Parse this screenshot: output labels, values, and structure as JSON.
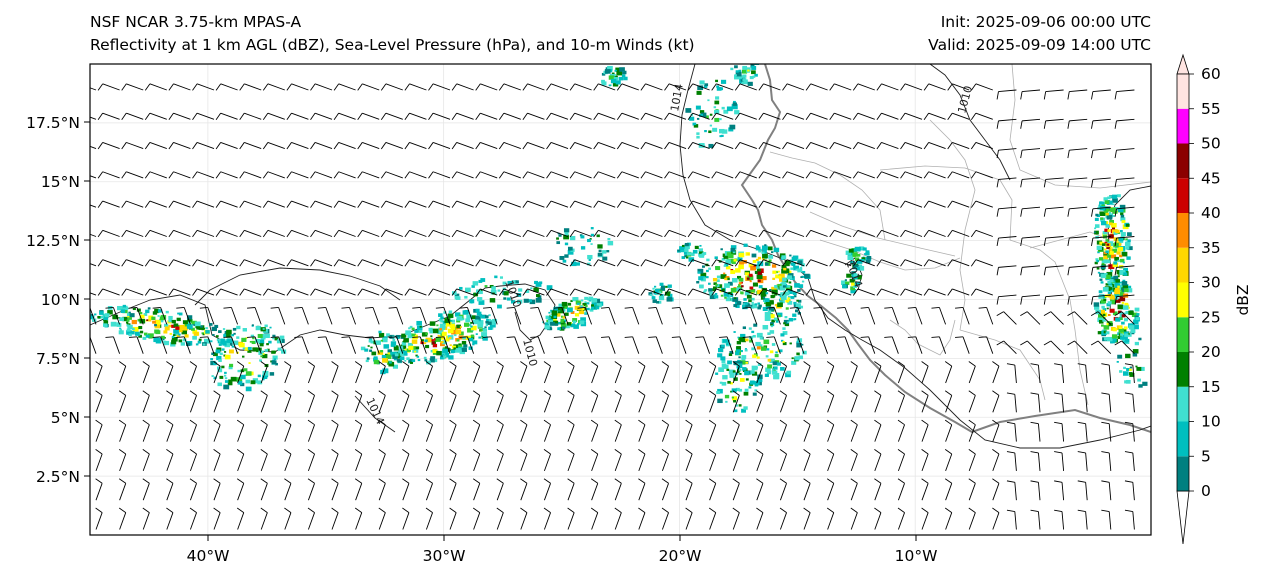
{
  "title": {
    "left_line1": "NSF NCAR 3.75-km MPAS-A",
    "left_line2": "Reflectivity at 1 km AGL (dBZ), Sea-Level Pressure (hPa), and 10-m Winds (kt)",
    "right_line1": "Init: 2025-09-06 00:00 UTC",
    "right_line2": "Valid: 2025-09-09 14:00 UTC"
  },
  "map": {
    "lon_range": [
      -45,
      0
    ],
    "lat_range": [
      0,
      20
    ],
    "x_ticks": [
      "40°W",
      "30°W",
      "20°W",
      "10°W"
    ],
    "y_ticks": [
      "2.5°N",
      "5°N",
      "7.5°N",
      "10°N",
      "12.5°N",
      "15°N",
      "17.5°N"
    ],
    "isobar_labels": [
      "1014",
      "1010",
      "1010",
      "1014",
      "1014",
      "1010"
    ],
    "coastline_color": "#808080",
    "border_color": "#b0b0b0",
    "isobar_color": "#202020"
  },
  "colorbar": {
    "label": "dBZ",
    "tick_labels": [
      "0",
      "5",
      "10",
      "15",
      "20",
      "25",
      "30",
      "35",
      "40",
      "45",
      "50",
      "55",
      "60"
    ],
    "colors": [
      "#008080",
      "#00bfbf",
      "#40e0d0",
      "#008000",
      "#32cd32",
      "#ffff00",
      "#ffd700",
      "#ff8c00",
      "#cc0000",
      "#8b0000",
      "#ff00ff",
      "#ffe4e1"
    ]
  }
}
